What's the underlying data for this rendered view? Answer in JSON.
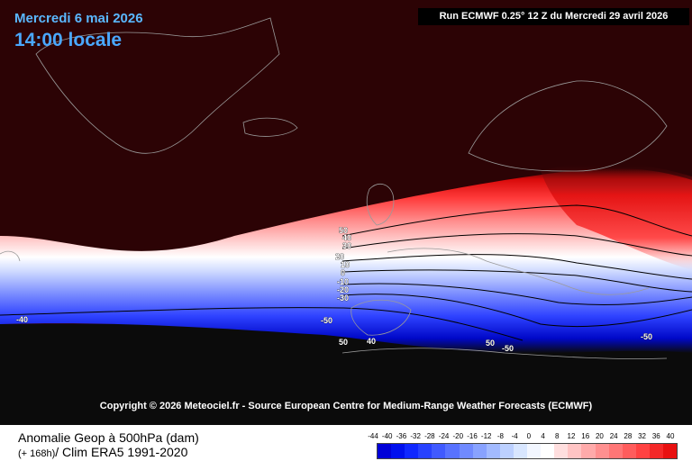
{
  "header": {
    "date_line": "Mercredi 6 mai 2026",
    "local_time": "14:00 locale",
    "run_info": "Run ECMWF 0.25° 12 Z du Mercredi 29 avril 2026"
  },
  "copyright": "Copyright © 2026 Meteociel.fr - Source European Centre for Medium-Range Weather Forecasts (ECMWF)",
  "footer": {
    "title": "Anomalie Geop à 500hPa (dam)",
    "sub_prefix": "(+ 168h)",
    "sub_rest": "/ Clim ERA5 1991-2020"
  },
  "legend": {
    "values": [
      "-44",
      "-40",
      "-36",
      "-32",
      "-28",
      "-24",
      "-20",
      "-16",
      "-12",
      "-8",
      "-4",
      "0",
      "4",
      "8",
      "12",
      "16",
      "20",
      "24",
      "28",
      "32",
      "36",
      "40"
    ],
    "colors": [
      "#0000d8",
      "#0010ee",
      "#1028ff",
      "#2842ff",
      "#405aff",
      "#5872ff",
      "#708aff",
      "#88a2ff",
      "#a2baff",
      "#bcd0ff",
      "#d8e6ff",
      "#f2f6ff",
      "#ffffff",
      "#ffdede",
      "#ffc4c4",
      "#ffaaaa",
      "#ff9090",
      "#ff7676",
      "#ff5c5c",
      "#ff4242",
      "#f42828",
      "#e81010"
    ]
  },
  "contours": {
    "labels": [
      "50",
      "40",
      "30",
      "20",
      "10",
      "0",
      "-10",
      "-20",
      "-30",
      "-40",
      "-50",
      "50",
      "40",
      "50",
      "-50",
      "-50"
    ]
  },
  "colors": {
    "background_north": "#2c0305",
    "background_south": "#0b0b0b",
    "coastline": "#9a9a9a"
  }
}
